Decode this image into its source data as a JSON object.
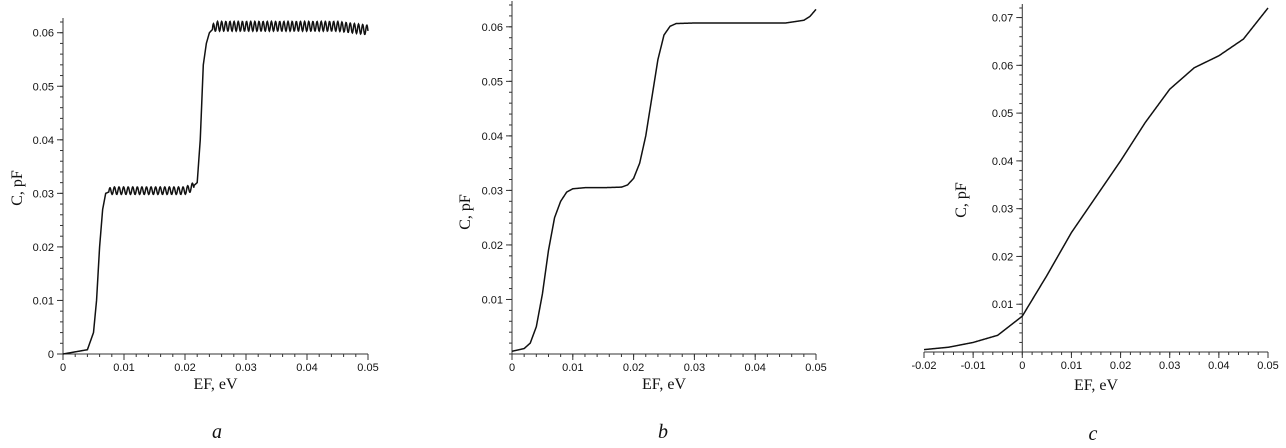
{
  "chart_data": [
    {
      "type": "line",
      "panel_label": "a",
      "xlabel": "EF, eV",
      "ylabel": "C, pF",
      "xlim": [
        0,
        0.05
      ],
      "ylim": [
        0,
        0.062
      ],
      "xticks": [
        "0",
        "0.01",
        "0.02",
        "0.03",
        "0.04",
        "0.05"
      ],
      "yticks": [
        "0",
        "0.01",
        "0.02",
        "0.03",
        "0.04",
        "0.05",
        "0.06"
      ],
      "series": [
        {
          "x": [
            0,
            0.004,
            0.005,
            0.0055,
            0.006,
            0.0065,
            0.007,
            0.008,
            0.012,
            0.016,
            0.02,
            0.021,
            0.022,
            0.0225,
            0.023,
            0.0235,
            0.024,
            0.025,
            0.03,
            0.035,
            0.04,
            0.045,
            0.05
          ],
          "y": [
            0,
            0.0008,
            0.004,
            0.01,
            0.02,
            0.027,
            0.03,
            0.0305,
            0.0305,
            0.0305,
            0.0305,
            0.031,
            0.032,
            0.04,
            0.054,
            0.058,
            0.06,
            0.0612,
            0.0612,
            0.0612,
            0.0612,
            0.0612,
            0.0605
          ]
        }
      ]
    },
    {
      "type": "line",
      "panel_label": "b",
      "xlabel": "EF, eV",
      "ylabel": "C, pF",
      "xlim": [
        0,
        0.05
      ],
      "ylim": [
        0,
        0.064
      ],
      "xticks": [
        "0",
        "0.01",
        "0.02",
        "0.03",
        "0.04",
        "0.05"
      ],
      "yticks": [
        "0.01",
        "0.02",
        "0.03",
        "0.04",
        "0.05",
        "0.06"
      ],
      "series": [
        {
          "x": [
            0,
            0.002,
            0.003,
            0.004,
            0.005,
            0.006,
            0.007,
            0.008,
            0.009,
            0.01,
            0.012,
            0.015,
            0.018,
            0.019,
            0.02,
            0.021,
            0.022,
            0.023,
            0.024,
            0.025,
            0.026,
            0.027,
            0.03,
            0.035,
            0.04,
            0.045,
            0.048,
            0.049,
            0.05
          ],
          "y": [
            0.0005,
            0.001,
            0.002,
            0.005,
            0.011,
            0.019,
            0.025,
            0.028,
            0.0297,
            0.0303,
            0.0305,
            0.0305,
            0.0306,
            0.031,
            0.0322,
            0.035,
            0.04,
            0.047,
            0.054,
            0.0585,
            0.0601,
            0.0606,
            0.0607,
            0.0607,
            0.0607,
            0.0607,
            0.0612,
            0.0619,
            0.0632
          ]
        }
      ]
    },
    {
      "type": "line",
      "panel_label": "c",
      "xlabel": "EF, eV",
      "ylabel": "C, pF",
      "xlim": [
        -0.02,
        0.05
      ],
      "ylim": [
        0,
        0.072
      ],
      "xticks": [
        "-0.02",
        "-0.01",
        "0",
        "0.01",
        "0.02",
        "0.03",
        "0.04",
        "0.05"
      ],
      "yticks": [
        "0.01",
        "0.02",
        "0.03",
        "0.04",
        "0.05",
        "0.06",
        "0.07"
      ],
      "series": [
        {
          "x": [
            -0.02,
            -0.015,
            -0.01,
            -0.005,
            0,
            0.005,
            0.01,
            0.015,
            0.02,
            0.025,
            0.03,
            0.035,
            0.04,
            0.045,
            0.05
          ],
          "y": [
            0.0005,
            0.001,
            0.002,
            0.0035,
            0.0075,
            0.016,
            0.025,
            0.0325,
            0.04,
            0.048,
            0.055,
            0.0595,
            0.062,
            0.0655,
            0.072
          ]
        }
      ]
    }
  ]
}
